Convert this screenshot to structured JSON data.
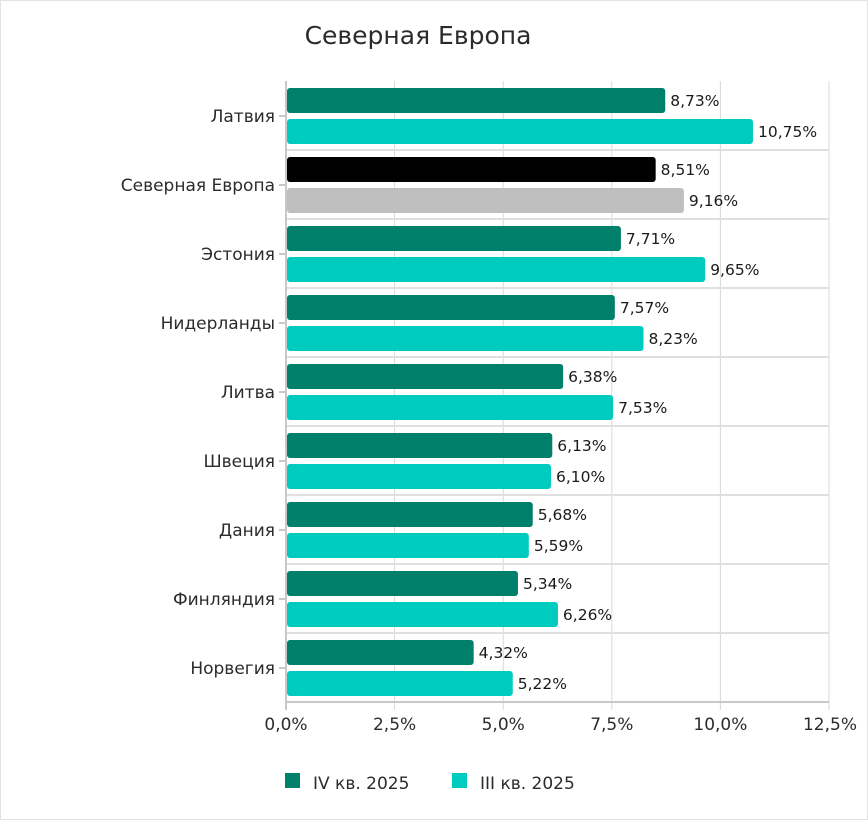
{
  "chart_data": {
    "type": "bar",
    "orientation": "horizontal",
    "title": "Северная Европа",
    "xlabel": "",
    "ylabel": "",
    "xlim": [
      0,
      12.5
    ],
    "x_ticks": [
      "0,0%",
      "2,5%",
      "5,0%",
      "7,5%",
      "10,0%",
      "12,5%"
    ],
    "x_tick_values": [
      0,
      2.5,
      5,
      7.5,
      10,
      12.5
    ],
    "grid": true,
    "legend_position": "bottom",
    "categories": [
      "Латвия",
      "Северная Европа",
      "Эстония",
      "Нидерланды",
      "Литва",
      "Швеция",
      "Дания",
      "Финляндия",
      "Норвегия"
    ],
    "highlight_category": "Северная Европа",
    "series": [
      {
        "name": "IV кв. 2025",
        "color": "#007f6b",
        "highlight_color": "#000000",
        "values": [
          8.73,
          8.51,
          7.71,
          7.57,
          6.38,
          6.13,
          5.68,
          5.34,
          4.32
        ],
        "labels": [
          "8,73%",
          "8,51%",
          "7,71%",
          "7,57%",
          "6,38%",
          "6,13%",
          "5,68%",
          "5,34%",
          "4,32%"
        ]
      },
      {
        "name": "III кв. 2025",
        "color": "#00cbbf",
        "highlight_color": "#bfbfbf",
        "values": [
          10.75,
          9.16,
          9.65,
          8.23,
          7.53,
          6.1,
          5.59,
          6.26,
          5.22
        ],
        "labels": [
          "10,75%",
          "9,16%",
          "9,65%",
          "8,23%",
          "7,53%",
          "6,10%",
          "5,59%",
          "6,26%",
          "5,22%"
        ]
      }
    ]
  }
}
